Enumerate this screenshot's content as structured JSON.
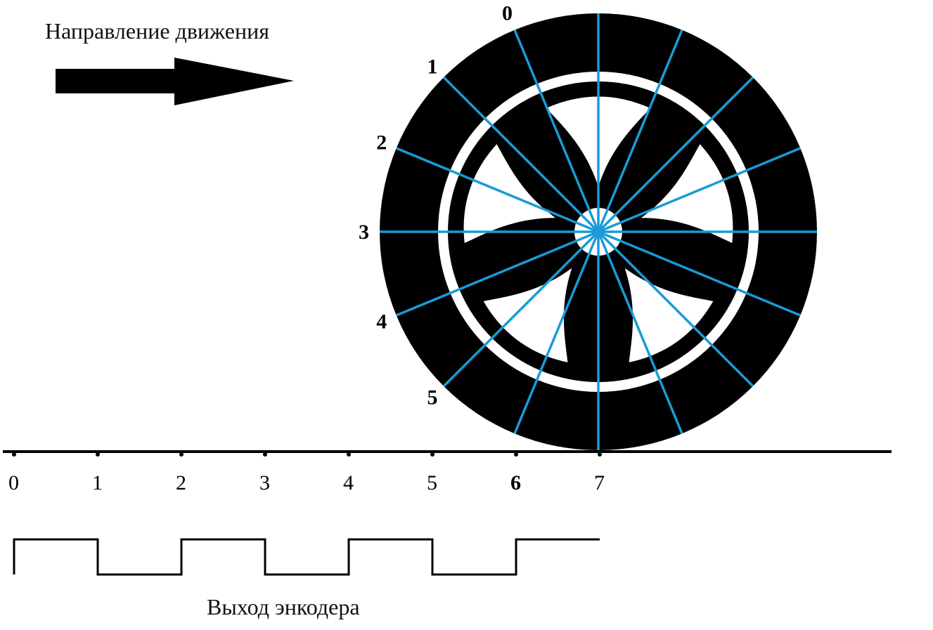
{
  "diagram": {
    "direction_label": "Направление движения",
    "encoder_label": "Выход энкодера",
    "wheel_labels": [
      "0",
      "1",
      "2",
      "3",
      "4",
      "5"
    ],
    "axis_ticks": [
      "0",
      "1",
      "2",
      "3",
      "4",
      "5",
      "6",
      "7"
    ],
    "bold_axis_ticks": [
      "6"
    ],
    "spoke_count": 16,
    "encoder_signal": [
      1,
      0,
      1,
      0,
      1,
      0,
      1
    ],
    "colors": {
      "spoke": "#1a9ad6",
      "tire": "#000000",
      "background": "#ffffff"
    }
  }
}
